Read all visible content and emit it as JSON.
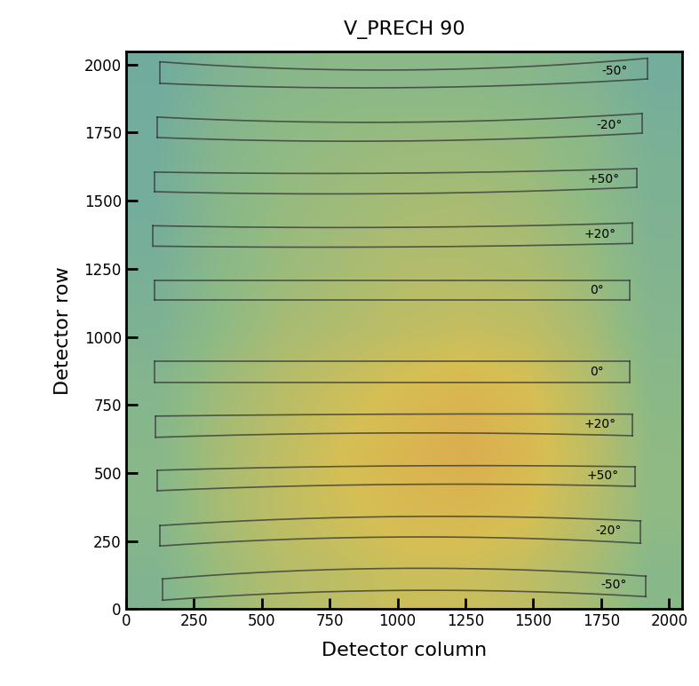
{
  "chart_data": {
    "type": "heatmap",
    "title": "V_PRECH 90",
    "x_label": "Detector column",
    "y_label": "Detector row",
    "xlim": [
      0,
      2048
    ],
    "ylim": [
      0,
      2048
    ],
    "xticks": [
      0,
      250,
      500,
      750,
      1000,
      1250,
      1500,
      1750,
      2000
    ],
    "yticks": [
      0,
      250,
      500,
      750,
      1000,
      1250,
      1500,
      1750,
      2000
    ],
    "value_range": [
      0,
      1
    ],
    "cells": [
      [
        0.35,
        0.5,
        0.6,
        0.65,
        0.7,
        0.7,
        0.65,
        0.55,
        0.4
      ],
      [
        0.4,
        0.55,
        0.65,
        0.72,
        0.78,
        0.8,
        0.75,
        0.62,
        0.45
      ],
      [
        0.4,
        0.55,
        0.65,
        0.75,
        0.82,
        0.88,
        0.8,
        0.65,
        0.45
      ],
      [
        0.38,
        0.52,
        0.62,
        0.7,
        0.77,
        0.82,
        0.76,
        0.62,
        0.42
      ],
      [
        0.32,
        0.45,
        0.55,
        0.6,
        0.65,
        0.68,
        0.65,
        0.55,
        0.38
      ],
      [
        0.28,
        0.42,
        0.5,
        0.55,
        0.6,
        0.6,
        0.58,
        0.5,
        0.35
      ],
      [
        0.25,
        0.4,
        0.48,
        0.52,
        0.55,
        0.56,
        0.53,
        0.45,
        0.32
      ],
      [
        0.25,
        0.38,
        0.45,
        0.48,
        0.5,
        0.5,
        0.48,
        0.42,
        0.3
      ],
      [
        0.22,
        0.33,
        0.4,
        0.42,
        0.42,
        0.42,
        0.4,
        0.35,
        0.25
      ]
    ],
    "regions": [
      {
        "label": "-50°",
        "x_range": [
          125,
          1920
        ],
        "top": [
          2010,
          1980,
          2023
        ],
        "bottom": [
          1931,
          1915,
          1947
        ]
      },
      {
        "label": "-20°",
        "x_range": [
          115,
          1900
        ],
        "top": [
          1807,
          1788,
          1820
        ],
        "bottom": [
          1732,
          1719,
          1748
        ]
      },
      {
        "label": "+50°",
        "x_range": [
          105,
          1880
        ],
        "top": [
          1605,
          1601,
          1618
        ],
        "bottom": [
          1533,
          1526,
          1549
        ]
      },
      {
        "label": "+20°",
        "x_range": [
          100,
          1865
        ],
        "top": [
          1408,
          1402,
          1418
        ],
        "bottom": [
          1333,
          1330,
          1343
        ]
      },
      {
        "label": "0°",
        "x_range": [
          105,
          1855
        ],
        "top": [
          1206,
          1206,
          1206
        ],
        "bottom": [
          1134,
          1134,
          1134
        ]
      },
      {
        "label": "0°",
        "x_range": [
          105,
          1855
        ],
        "top": [
          912,
          912,
          912
        ],
        "bottom": [
          833,
          833,
          833
        ]
      },
      {
        "label": "+20°",
        "x_range": [
          110,
          1865
        ],
        "top": [
          709,
          716,
          716
        ],
        "bottom": [
          631,
          647,
          637
        ]
      },
      {
        "label": "+50°",
        "x_range": [
          115,
          1875
        ],
        "top": [
          510,
          526,
          523
        ],
        "bottom": [
          435,
          458,
          451
        ]
      },
      {
        "label": "-20°",
        "x_range": [
          125,
          1895
        ],
        "top": [
          307,
          340,
          324
        ],
        "bottom": [
          232,
          265,
          242
        ]
      },
      {
        "label": "-50°",
        "x_range": [
          135,
          1915
        ],
        "top": [
          111,
          150,
          121
        ],
        "bottom": [
          33,
          69,
          46
        ]
      }
    ]
  }
}
